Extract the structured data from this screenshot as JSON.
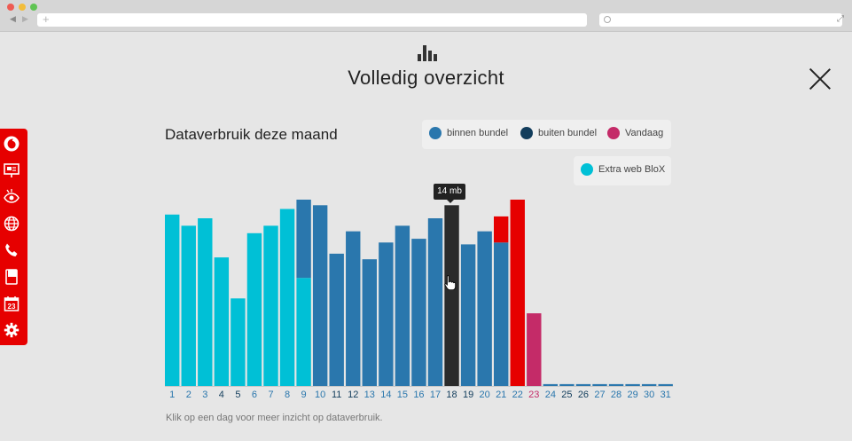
{
  "page": {
    "title": "Volledig overzicht",
    "footer_note": "Klik op een dag voor meer inzicht op dataverbruik."
  },
  "chart_header": {
    "title": "Dataverbruik deze maand"
  },
  "legend": {
    "items": [
      {
        "label": "binnen bundel",
        "color": "#2a77ad"
      },
      {
        "label": "buiten bundel",
        "color": "#123d5c"
      },
      {
        "label": "Vandaag",
        "color": "#c42b68"
      },
      {
        "label": "Extra web BloX",
        "color": "#00c0d6"
      }
    ]
  },
  "tooltip": {
    "text": "14 mb"
  },
  "sidebar": {
    "items": [
      {
        "icon": "vodafone-logo-icon"
      },
      {
        "icon": "presentation-icon"
      },
      {
        "icon": "eye-icon"
      },
      {
        "icon": "globe-icon"
      },
      {
        "icon": "phone-icon"
      },
      {
        "icon": "book-icon"
      },
      {
        "icon": "calendar-icon",
        "text": "23"
      },
      {
        "icon": "gear-icon"
      }
    ]
  },
  "colors": {
    "extra": "#00c0d6",
    "binnen": "#2a77ad",
    "buiten": "#123d5c",
    "selected": "#2b2b2b",
    "overuse": "#e60000",
    "today": "#c42b68",
    "brand": "#e60000"
  },
  "chart_data": {
    "type": "bar",
    "title": "Dataverbruik deze maand",
    "categories": [
      "1",
      "2",
      "3",
      "4",
      "5",
      "6",
      "7",
      "8",
      "9",
      "10",
      "11",
      "12",
      "13",
      "14",
      "15",
      "16",
      "17",
      "18",
      "19",
      "20",
      "21",
      "22",
      "23",
      "24",
      "25",
      "26",
      "27",
      "28",
      "29",
      "30",
      "31"
    ],
    "ylim": [
      0,
      100
    ],
    "selected_day": "18",
    "today": "23",
    "series": [
      {
        "name": "Extra web BloX",
        "values": [
          92,
          86,
          90,
          69,
          47,
          82,
          86,
          95,
          58,
          0,
          0,
          0,
          0,
          0,
          0,
          0,
          0,
          0,
          0,
          0,
          0,
          0,
          0,
          0,
          0,
          0,
          0,
          0,
          0,
          0,
          0
        ]
      },
      {
        "name": "binnen bundel",
        "values": [
          0,
          0,
          0,
          0,
          0,
          0,
          0,
          0,
          42,
          97,
          71,
          83,
          68,
          77,
          86,
          79,
          90,
          97,
          76,
          83,
          77,
          0,
          0,
          1,
          1,
          1,
          1,
          1,
          1,
          1,
          1
        ]
      },
      {
        "name": "buiten bundel",
        "values": [
          0,
          0,
          0,
          0,
          0,
          0,
          0,
          0,
          0,
          0,
          0,
          0,
          0,
          0,
          0,
          0,
          0,
          0,
          0,
          0,
          14,
          100,
          0,
          0,
          0,
          0,
          0,
          0,
          0,
          0,
          0
        ]
      },
      {
        "name": "Vandaag",
        "values": [
          0,
          0,
          0,
          0,
          0,
          0,
          0,
          0,
          0,
          0,
          0,
          0,
          0,
          0,
          0,
          0,
          0,
          0,
          0,
          0,
          0,
          0,
          39,
          0,
          0,
          0,
          0,
          0,
          0,
          0,
          0
        ]
      }
    ]
  }
}
